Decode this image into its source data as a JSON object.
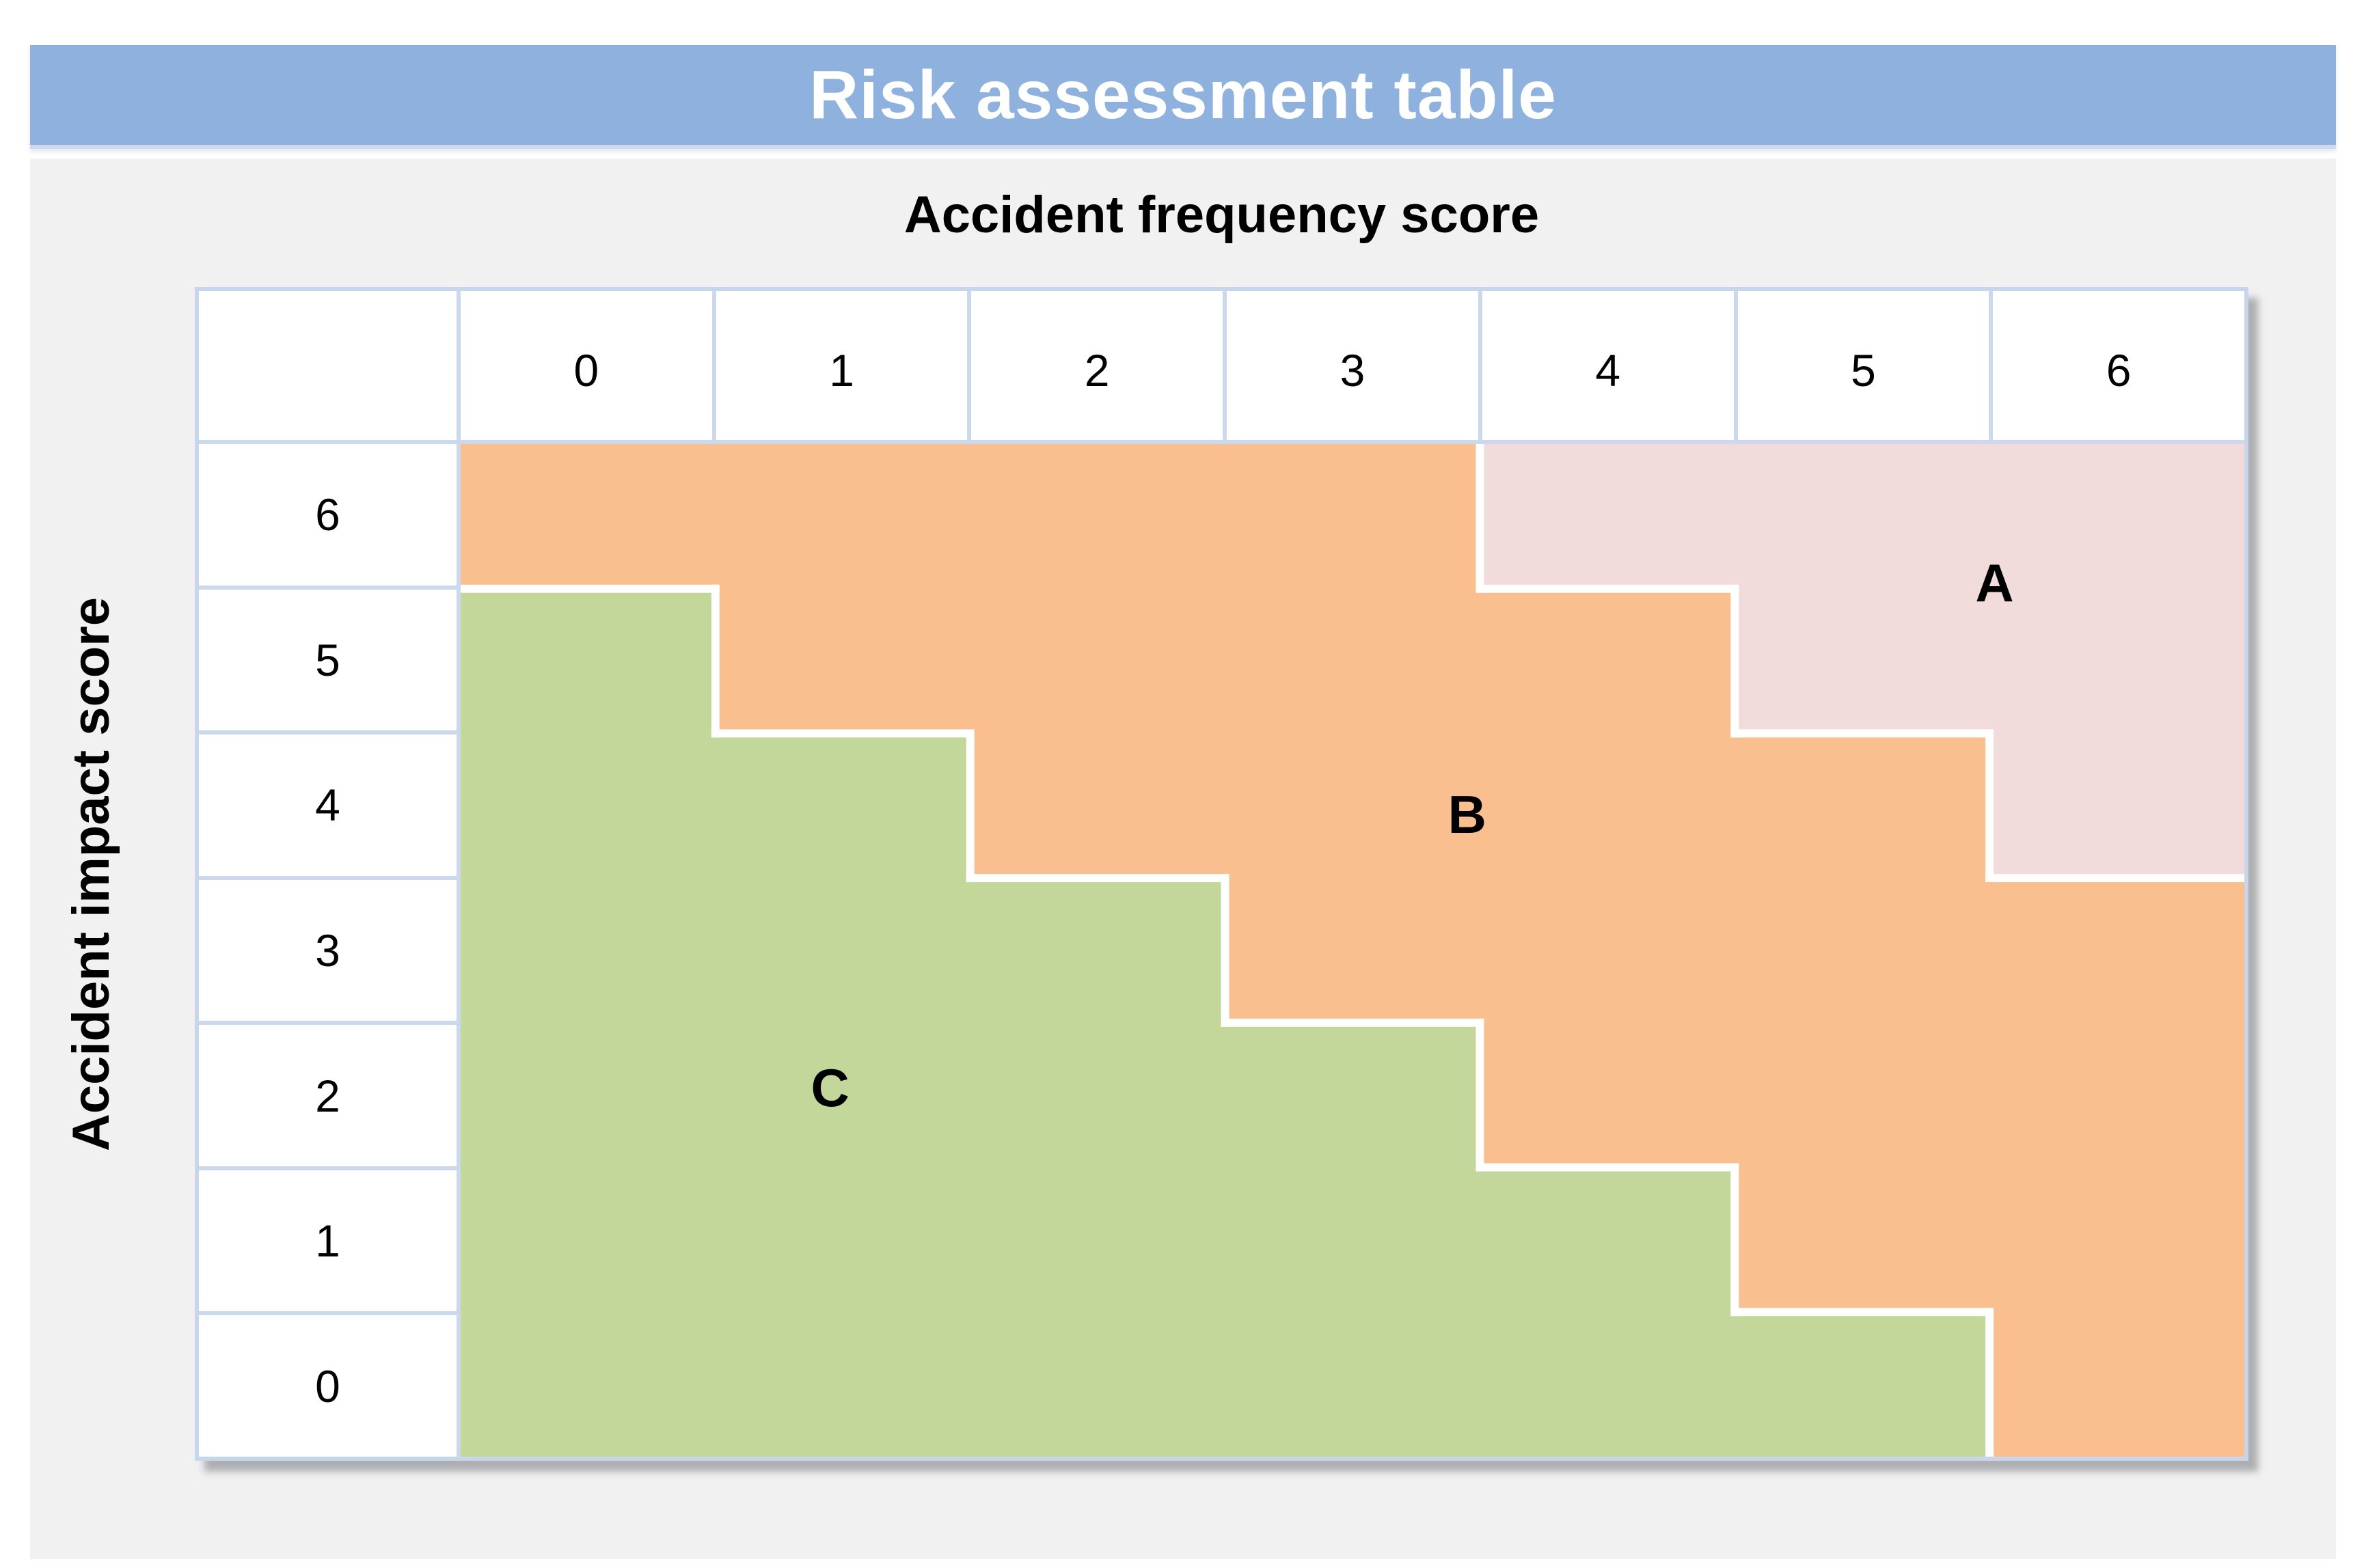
{
  "title_bar": {
    "label": "Risk assessment table",
    "background": "#8fb1de",
    "text_color": "#ffffff"
  },
  "axes": {
    "x_label": "Accident frequency score",
    "y_label": "Accident impact score"
  },
  "table": {
    "column_headers": [
      "0",
      "1",
      "2",
      "3",
      "4",
      "5",
      "6"
    ],
    "row_headers": [
      "6",
      "5",
      "4",
      "3",
      "2",
      "1",
      "0"
    ]
  },
  "zones": {
    "labels": {
      "A": "A",
      "B": "B",
      "C": "C"
    },
    "colors": {
      "A": "#f2dcdb",
      "B": "#fabf8f",
      "C": "#c4d79b"
    },
    "label_positions": {
      "A": {
        "col": 6.02,
        "row": 0.96
      },
      "B": {
        "col": 3.95,
        "row": 2.56
      },
      "C": {
        "col": 1.45,
        "row": 4.45
      }
    }
  },
  "grid": {
    "line_color": "#ccd9ec",
    "boundary_color": "#ffffff",
    "cell_background": "#ffffff",
    "panel_background": "#f1f1f2"
  },
  "chart_data": {
    "type": "heatmap",
    "title": "Risk assessment table",
    "xlabel": "Accident frequency score",
    "ylabel": "Accident impact score",
    "x_categories": [
      0,
      1,
      2,
      3,
      4,
      5,
      6
    ],
    "y_categories_top_to_bottom": [
      6,
      5,
      4,
      3,
      2,
      1,
      0
    ],
    "zone_matrix_rows_top_to_bottom": [
      [
        "B",
        "B",
        "B",
        "B",
        "A",
        "A",
        "A"
      ],
      [
        "C",
        "B",
        "B",
        "B",
        "B",
        "A",
        "A"
      ],
      [
        "C",
        "C",
        "B",
        "B",
        "B",
        "B",
        "A"
      ],
      [
        "C",
        "C",
        "C",
        "B",
        "B",
        "B",
        "B"
      ],
      [
        "C",
        "C",
        "C",
        "C",
        "B",
        "B",
        "B"
      ],
      [
        "C",
        "C",
        "C",
        "C",
        "C",
        "B",
        "B"
      ],
      [
        "C",
        "C",
        "C",
        "C",
        "C",
        "C",
        "B"
      ]
    ],
    "zone_colors": {
      "A": "#f2dcdb",
      "B": "#fabf8f",
      "C": "#c4d79b"
    },
    "annotations": [
      {
        "text": "A",
        "zone": "A"
      },
      {
        "text": "B",
        "zone": "B"
      },
      {
        "text": "C",
        "zone": "C"
      }
    ],
    "legend_position": "none",
    "grid": "off"
  }
}
